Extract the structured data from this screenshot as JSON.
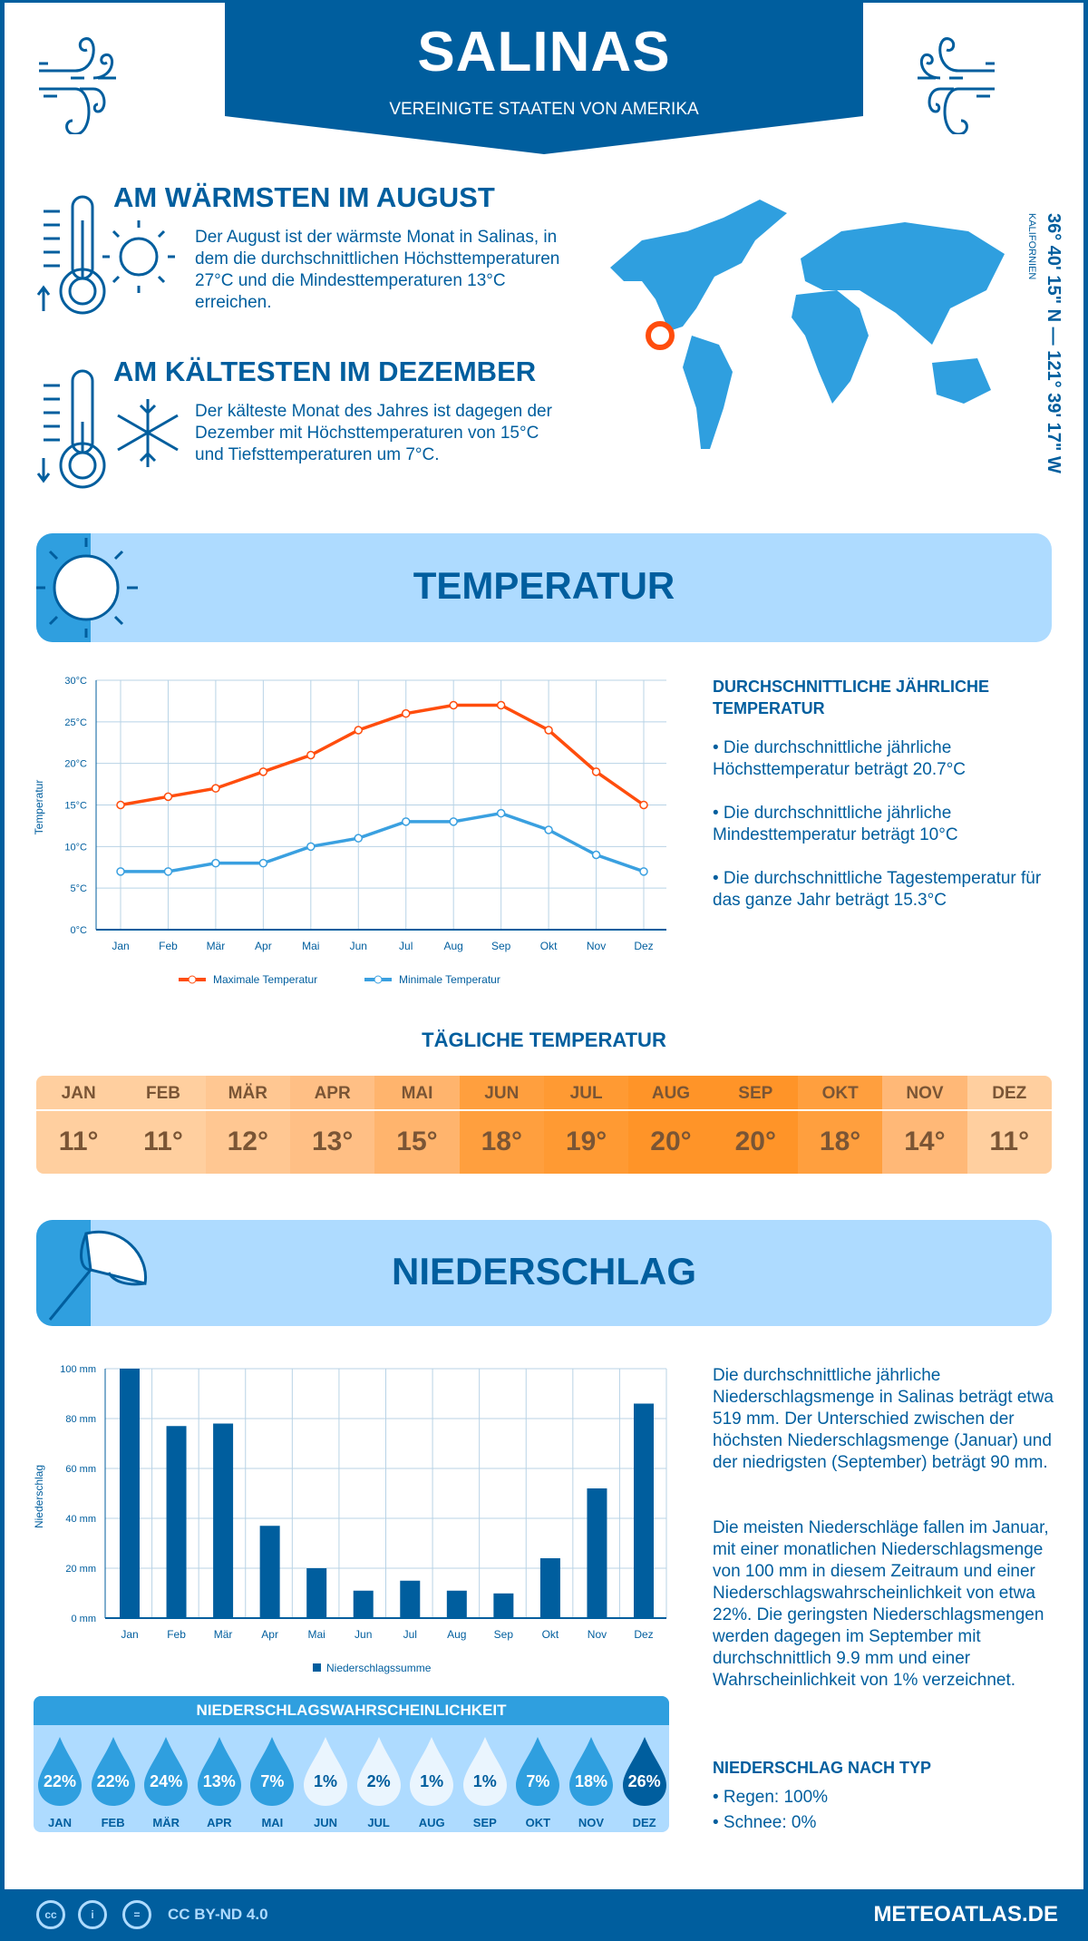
{
  "header": {
    "city": "SALINAS",
    "country": "VEREINIGTE STAATEN VON AMERIKA"
  },
  "warmest": {
    "title": "AM WÄRMSTEN IM AUGUST",
    "text": "Der August ist der wärmste Monat in Salinas, in dem die durchschnittlichen Höchsttemperaturen 27°C und die Mindesttemperaturen 13°C erreichen."
  },
  "coldest": {
    "title": "AM KÄLTESTEN IM DEZEMBER",
    "text": "Der kälteste Monat des Jahres ist dagegen der Dezember mit Höchsttemperaturen von 15°C und Tiefsttemperaturen um 7°C."
  },
  "location": {
    "coords": "36° 40' 15\" N — 121° 39' 17\" W",
    "region": "KALIFORNIEN"
  },
  "colors": {
    "dark_blue": "#005e9e",
    "mid_blue": "#2f9fdf",
    "light_blue": "#aedbff",
    "max_line": "#ff4d0d",
    "min_line": "#3aa0e0"
  },
  "temperature": {
    "title": "TEMPERATUR",
    "annual_heading": "DURCHSCHNITTLICHE JÄHRLICHE TEMPERATUR",
    "bullets": [
      "• Die durchschnittliche jährliche Höchsttemperatur beträgt 20.7°C",
      "• Die durchschnittliche jährliche Mindesttemperatur beträgt 10°C",
      "• Die durchschnittliche Tagestemperatur für das ganze Jahr beträgt 15.3°C"
    ],
    "daily_heading": "TÄGLICHE TEMPERATUR",
    "daily": [
      {
        "m": "JAN",
        "v": "11°",
        "c": "#ffcf9f"
      },
      {
        "m": "FEB",
        "v": "11°",
        "c": "#ffcf9f"
      },
      {
        "m": "MÄR",
        "v": "12°",
        "c": "#ffc792"
      },
      {
        "m": "APR",
        "v": "13°",
        "c": "#ffbf85"
      },
      {
        "m": "MAI",
        "v": "15°",
        "c": "#ffb46d"
      },
      {
        "m": "JUN",
        "v": "18°",
        "c": "#ff9f3e"
      },
      {
        "m": "JUL",
        "v": "19°",
        "c": "#ff9a33"
      },
      {
        "m": "AUG",
        "v": "20°",
        "c": "#ff9428"
      },
      {
        "m": "SEP",
        "v": "20°",
        "c": "#ff9428"
      },
      {
        "m": "OKT",
        "v": "18°",
        "c": "#ff9f3e"
      },
      {
        "m": "NOV",
        "v": "14°",
        "c": "#ffb877"
      },
      {
        "m": "DEZ",
        "v": "11°",
        "c": "#ffcf9f"
      }
    ]
  },
  "precipitation": {
    "title": "NIEDERSCHLAG",
    "text1": "Die durchschnittliche jährliche Niederschlagsmenge in Salinas beträgt etwa 519 mm. Der Unterschied zwischen der höchsten Niederschlagsmenge (Januar) und der niedrigsten (September) beträgt 90 mm.",
    "text2": "Die meisten Niederschläge fallen im Januar, mit einer monatlichen Niederschlagsmenge von 100 mm in diesem Zeitraum und einer Niederschlagswahrscheinlichkeit von etwa 22%. Die geringsten Niederschlagsmengen werden dagegen im September mit durchschnittlich 9.9 mm und einer Wahrscheinlichkeit von 1% verzeichnet.",
    "type_heading": "NIEDERSCHLAG NACH TYP",
    "types": [
      "• Regen: 100%",
      "• Schnee: 0%"
    ],
    "probability_title": "NIEDERSCHLAGSWAHRSCHEINLICHKEIT",
    "probability": [
      {
        "m": "JAN",
        "v": "22%",
        "pct": 22
      },
      {
        "m": "FEB",
        "v": "22%",
        "pct": 22
      },
      {
        "m": "MÄR",
        "v": "24%",
        "pct": 24
      },
      {
        "m": "APR",
        "v": "13%",
        "pct": 13
      },
      {
        "m": "MAI",
        "v": "7%",
        "pct": 7
      },
      {
        "m": "JUN",
        "v": "1%",
        "pct": 1
      },
      {
        "m": "JUL",
        "v": "2%",
        "pct": 2
      },
      {
        "m": "AUG",
        "v": "1%",
        "pct": 1
      },
      {
        "m": "SEP",
        "v": "1%",
        "pct": 1
      },
      {
        "m": "OKT",
        "v": "7%",
        "pct": 7
      },
      {
        "m": "NOV",
        "v": "18%",
        "pct": 18
      },
      {
        "m": "DEZ",
        "v": "26%",
        "pct": 26
      }
    ]
  },
  "chart_data": [
    {
      "type": "line",
      "categories": [
        "Jan",
        "Feb",
        "Mär",
        "Apr",
        "Mai",
        "Jun",
        "Jul",
        "Aug",
        "Sep",
        "Okt",
        "Nov",
        "Dez"
      ],
      "series": [
        {
          "name": "Maximale Temperatur",
          "values": [
            15,
            16,
            17,
            19,
            21,
            24,
            26,
            27,
            27,
            24,
            19,
            15
          ],
          "color": "#ff4d0d"
        },
        {
          "name": "Minimale Temperatur",
          "values": [
            7,
            7,
            8,
            8,
            10,
            11,
            13,
            13,
            14,
            12,
            9,
            7
          ],
          "color": "#3aa0e0"
        }
      ],
      "ylabel": "Temperatur",
      "ylim": [
        0,
        30
      ],
      "yticks": [
        "0°C",
        "5°C",
        "10°C",
        "15°C",
        "20°C",
        "25°C",
        "30°C"
      ],
      "grid": true,
      "legend": "bottom"
    },
    {
      "type": "bar",
      "categories": [
        "Jan",
        "Feb",
        "Mär",
        "Apr",
        "Mai",
        "Jun",
        "Jul",
        "Aug",
        "Sep",
        "Okt",
        "Nov",
        "Dez"
      ],
      "series": [
        {
          "name": "Niederschlagssumme",
          "values": [
            100,
            77,
            78,
            37,
            20,
            11,
            15,
            11,
            9.9,
            24,
            52,
            86
          ],
          "color": "#005e9e"
        }
      ],
      "ylabel": "Niederschlag",
      "ylim": [
        0,
        100
      ],
      "yticks": [
        "0 mm",
        "20 mm",
        "40 mm",
        "60 mm",
        "80 mm",
        "100 mm"
      ],
      "grid": true,
      "legend": "bottom"
    }
  ],
  "footer": {
    "license": "CC BY-ND 4.0",
    "site": "METEOATLAS.DE",
    "cc": "cc",
    "eq": "="
  }
}
